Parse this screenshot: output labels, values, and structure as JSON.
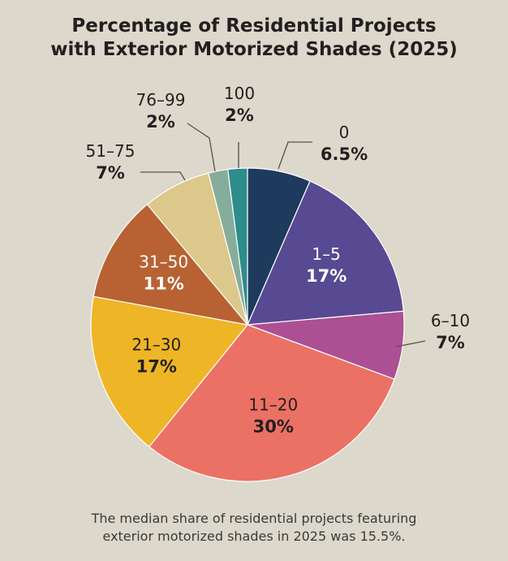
{
  "chart_data": {
    "type": "pie",
    "title_lines": [
      "Percentage of Residential Projects",
      "with Exterior Motorized Shades (2025)"
    ],
    "slices": [
      {
        "label": "0",
        "value": 6.5,
        "value_label": "6.5%",
        "color": "#1e3a5c"
      },
      {
        "label": "1–5",
        "value": 17,
        "value_label": "17%",
        "color": "#574a92"
      },
      {
        "label": "6–10",
        "value": 7,
        "value_label": "7%",
        "color": "#ad4f93"
      },
      {
        "label": "11–20",
        "value": 30,
        "value_label": "30%",
        "color": "#eb7164"
      },
      {
        "label": "21–30",
        "value": 17,
        "value_label": "17%",
        "color": "#eeb526"
      },
      {
        "label": "31–50",
        "value": 11,
        "value_label": "11%",
        "color": "#b86233"
      },
      {
        "label": "51–75",
        "value": 7,
        "value_label": "7%",
        "color": "#ddc88c"
      },
      {
        "label": "76–99",
        "value": 2,
        "value_label": "2%",
        "color": "#86ad9b"
      },
      {
        "label": "100",
        "value": 2,
        "value_label": "2%",
        "color": "#2f8c8c"
      }
    ]
  },
  "footnote_lines": [
    "The median share of residential projects featuring",
    "exterior motorized shades in 2025 was 15.5%."
  ]
}
